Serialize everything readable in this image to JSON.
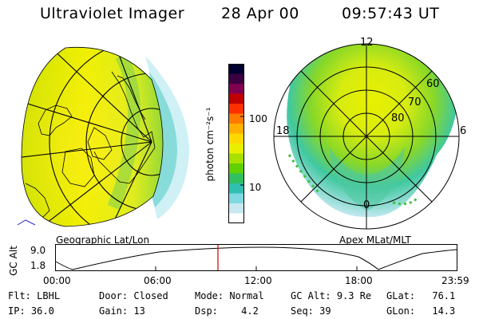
{
  "header": {
    "instrument": "Ultraviolet Imager",
    "date": "28 Apr 00",
    "time": "09:57:43 UT"
  },
  "left_panel": {
    "caption": "Geographic Lat/Lon"
  },
  "right_panel": {
    "caption": "Apex MLat/MLT",
    "mlt_labels": [
      "12",
      "18",
      "6",
      "0"
    ],
    "lat_labels": [
      "60",
      "70",
      "80"
    ]
  },
  "colorbar": {
    "label": "photon cm⁻²s⁻¹",
    "ticks": [
      "100",
      "10"
    ],
    "colors": [
      "#000030",
      "#3a0040",
      "#800050",
      "#c00000",
      "#ff3000",
      "#ff7a00",
      "#ffb000",
      "#ffd800",
      "#e8f000",
      "#a8e000",
      "#60d000",
      "#30c060",
      "#30c0b0",
      "#80d8e0",
      "#c8e8f0",
      "#ffffff"
    ]
  },
  "altitude": {
    "axis_label": "GC Alt",
    "yticks": [
      "9.0",
      "1.8"
    ],
    "xticks": [
      "00:00",
      "06:00",
      "12:00",
      "18:00",
      "23:59"
    ],
    "marker_color": "#cc0000"
  },
  "status": {
    "row1": [
      {
        "label": "Flt:",
        "value": "LBHL"
      },
      {
        "label": "Door:",
        "value": "Closed"
      },
      {
        "label": "Mode:",
        "value": "Normal"
      },
      {
        "label": "GC Alt:",
        "value": "9.3 Re"
      },
      {
        "label": "GLat:",
        "value": "76.1"
      }
    ],
    "row2": [
      {
        "label": "IP:",
        "value": "36.0"
      },
      {
        "label": "Gain:",
        "value": "13"
      },
      {
        "label": "Dsp:",
        "value": "4.2"
      },
      {
        "label": "Seq:",
        "value": "39"
      },
      {
        "label": "GLon:",
        "value": "14.3"
      }
    ]
  }
}
